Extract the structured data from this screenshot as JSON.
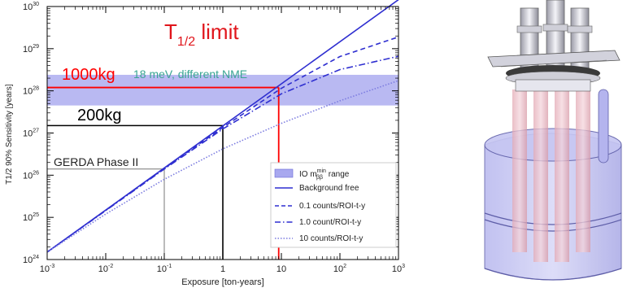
{
  "chart_data": {
    "type": "line",
    "title": "T1/2 limit",
    "title_main": "T",
    "title_sub": "1/2",
    "title_rest": " limit",
    "xlabel": "Exposure [ton-years]",
    "ylabel": "T1/2 90% Sensitivity [years]",
    "xscale": "log",
    "yscale": "log",
    "xlim": [
      0.001,
      1000
    ],
    "ylim": [
      1e+24,
      1e+30
    ],
    "xticks": [
      0.001,
      0.01,
      0.1,
      1,
      10,
      100,
      1000
    ],
    "xtick_base": [
      "10",
      "10",
      "10",
      "1",
      "10",
      "10",
      "10"
    ],
    "xtick_exp": [
      "-3",
      "-2",
      "-1",
      "",
      "",
      "2",
      "3"
    ],
    "yticks": [
      1e+24,
      1e+25,
      1e+26,
      1e+27,
      1e+28,
      1e+29,
      1e+30
    ],
    "ytick_base": [
      "10",
      "10",
      "10",
      "10",
      "10",
      "10",
      "10"
    ],
    "ytick_exp": [
      "24",
      "25",
      "26",
      "27",
      "28",
      "29",
      "30"
    ],
    "band": {
      "name": "IO mββmin range",
      "y": [
        4.5e+27,
        2.4e+28
      ],
      "color": "#a8a8ef"
    },
    "series": [
      {
        "name": "Background free",
        "style": "solid",
        "color": "#2f2fd0",
        "x": [
          0.001,
          1000
        ],
        "y": [
          1.5e+24,
          1.45e+30
        ]
      },
      {
        "name": "0.1 counts/ROI-t-y",
        "style": "dashed",
        "color": "#2f2fd0",
        "x": [
          0.001,
          0.1,
          1,
          10,
          100,
          1000
        ],
        "y": [
          1.5e+24,
          1.45e+26,
          1.35e+27,
          1.15e+28,
          6.5e+28,
          1.9e+29
        ]
      },
      {
        "name": "1.0 count/ROI-t-y",
        "style": "dashdot",
        "color": "#2f2fd0",
        "x": [
          0.001,
          0.1,
          1,
          10,
          100,
          1000
        ],
        "y": [
          1.5e+24,
          1.4e+26,
          1.25e+27,
          8.5e+27,
          3.2e+28,
          6.6e+28
        ]
      },
      {
        "name": "10 counts/ROI-t-y",
        "style": "dotted",
        "color": "#7c7ce0",
        "x": [
          0.001,
          0.01,
          0.1,
          1,
          10,
          100,
          1000
        ],
        "y": [
          1.5e+24,
          1.2e+25,
          8e+25,
          4.2e+26,
          1.7e+27,
          5.8e+27,
          1.75e+28
        ]
      }
    ],
    "legend": {
      "placement": "bottom-right",
      "band_label_main": "IO m",
      "band_label_sup": "min",
      "band_label_sub": "ββ",
      "band_label_rest": " range",
      "items": [
        "Background free",
        "0.1 counts/ROI-t-y",
        "1.0 count/ROI-t-y",
        "10 counts/ROI-t-y"
      ]
    },
    "annotations": [
      {
        "text": "GERDA Phase II",
        "x": 0.1,
        "y": 1.4e+26,
        "color": "#555555"
      },
      {
        "text": "200kg",
        "x": 1,
        "y": 1.5e+27,
        "color": "#000000"
      },
      {
        "text": "1000kg",
        "x": 9,
        "y": 1.2e+28,
        "color": "#ff0000"
      },
      {
        "text": "18 meV, different NME",
        "color": "#3aa593"
      }
    ]
  },
  "colors": {
    "title": "#e0151b",
    "gerda_lines": "#777777",
    "kg200_lines": "#000000",
    "kg1000_lines": "#ff0000",
    "nme_note": "#3aa593"
  },
  "detector": {
    "icon": "legend-detector-cryostat-illustration"
  }
}
